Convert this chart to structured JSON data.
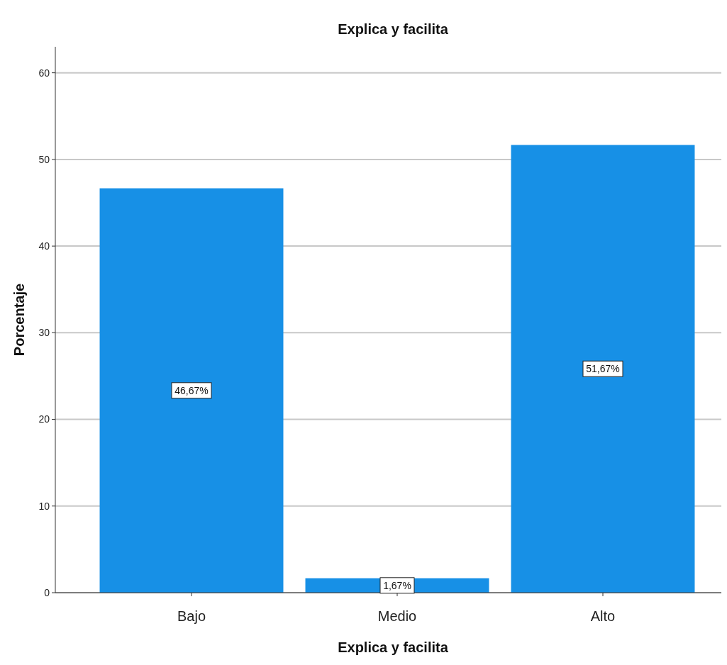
{
  "chart_data": {
    "type": "bar",
    "title": "Explica y facilita",
    "xlabel": "Explica y facilita",
    "ylabel": "Porcentaje",
    "categories": [
      "Bajo",
      "Medio",
      "Alto"
    ],
    "values": [
      46.67,
      1.67,
      51.67
    ],
    "value_labels": [
      "46,67%",
      "1,67%",
      "51,67%"
    ],
    "color": "#1790e6",
    "ylim": [
      0,
      63
    ],
    "yticks": [
      0,
      10,
      20,
      30,
      40,
      50,
      60
    ],
    "grid": "y"
  }
}
